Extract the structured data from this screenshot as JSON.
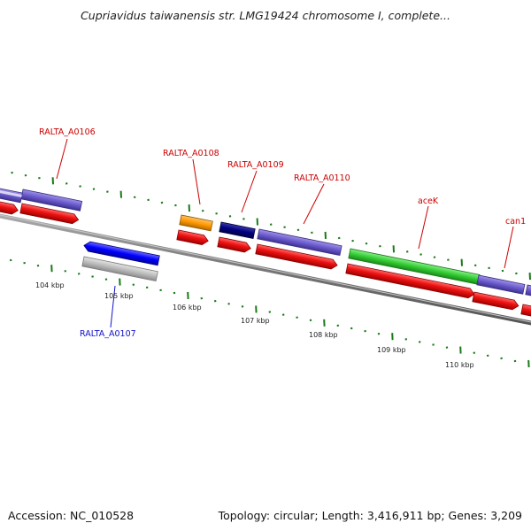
{
  "title": "Cupriavidus taiwanensis str. LMG19424 chromosome I, complete...",
  "footer": {
    "accession": "Accession: NC_010528",
    "summary": "Topology: circular; Length: 3,416,911 bp; Genes: 3,209"
  },
  "scale_labels": [
    "104 kbp",
    "105 kbp",
    "106 kbp",
    "107 kbp",
    "108 kbp",
    "109 kbp",
    "110 kbp"
  ],
  "gene_labels": {
    "a0106": "RALTA_A0106",
    "a0107": "RALTA_A0107",
    "a0108": "RALTA_A0108",
    "a0109": "RALTA_A0109",
    "a0110": "RALTA_A0110",
    "acek": "aceK",
    "can1": "can1"
  },
  "colors": {
    "label_forward": "#cc0000",
    "label_reverse": "#1111cc",
    "backbone": "#777777",
    "tick": "#1a7a1a",
    "cds": "#ee1111",
    "gene_purple": "#6a5acd",
    "gene_navy": "#000080",
    "gene_orange": "#ff9900",
    "gene_green": "#33cc33",
    "gene_blue": "#0000ff",
    "gene_gray": "#bbbbbb"
  }
}
